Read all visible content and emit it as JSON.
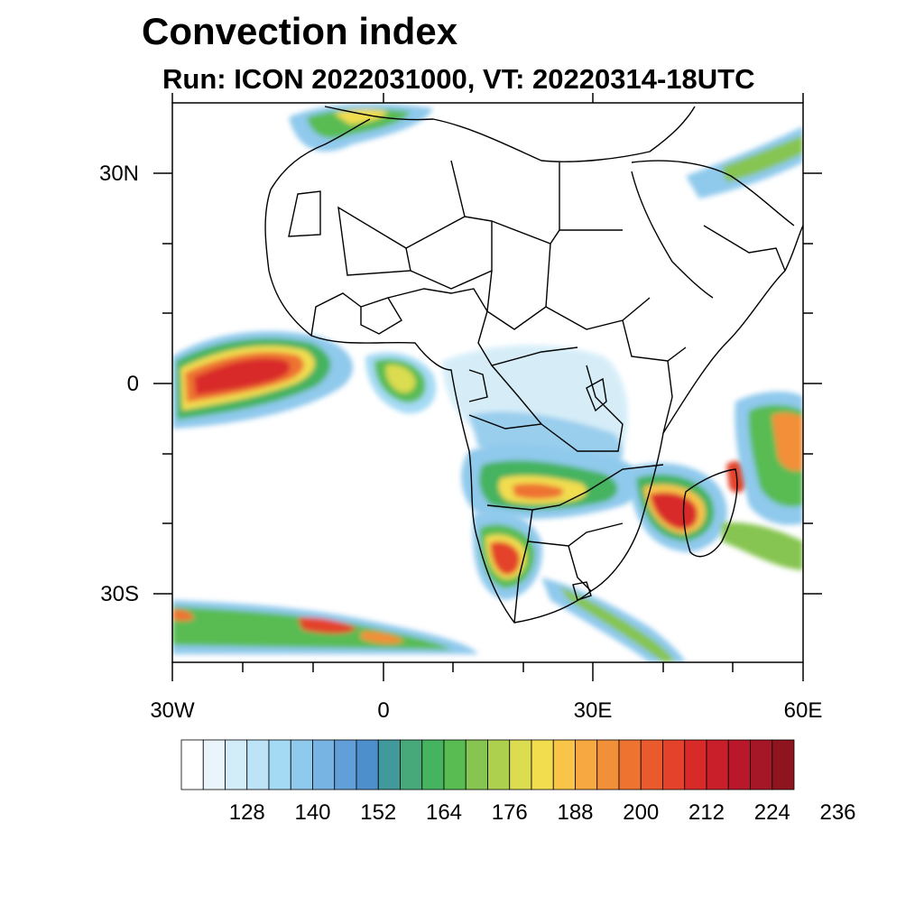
{
  "title": "Convection index",
  "subtitle": "Run: ICON 2022031000,  VT: 20220314-18UTC",
  "axes": {
    "lat_labels": [
      "30N",
      "0",
      "30S"
    ],
    "lon_labels": [
      "30W",
      "0",
      "30E",
      "60E"
    ]
  },
  "colorbar": {
    "labels": [
      "128",
      "140",
      "152",
      "164",
      "176",
      "188",
      "200",
      "212",
      "224",
      "236"
    ],
    "colors": [
      "#ffffff",
      "#e9f5fb",
      "#d2ecf8",
      "#bde4f6",
      "#a4daf4",
      "#8fc9ec",
      "#78b4e3",
      "#629fd8",
      "#4c8fcc",
      "#41999b",
      "#47a97a",
      "#45b35f",
      "#58bc52",
      "#86c551",
      "#aed04f",
      "#dbdc50",
      "#f2dd4f",
      "#f8c548",
      "#f7a840",
      "#f28f39",
      "#ee7331",
      "#e95a2c",
      "#e4422b",
      "#d92a2a",
      "#c91f2a",
      "#b8182a",
      "#a51626",
      "#8e1420"
    ]
  },
  "map_extent": {
    "lon": [
      -30,
      60
    ],
    "lat": [
      -40,
      40
    ]
  }
}
